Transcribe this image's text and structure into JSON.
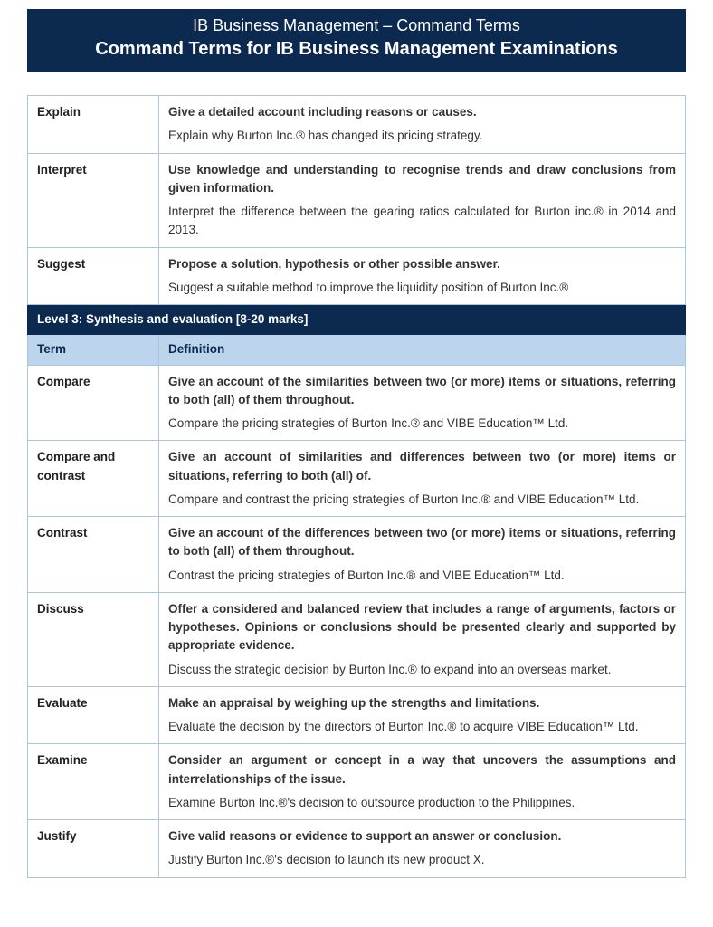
{
  "header": {
    "subtitle": "IB Business Management – Command Terms",
    "title": "Command Terms for IB Business Management Examinations"
  },
  "colors": {
    "header_bg": "#0c2a50",
    "header_text": "#ffffff",
    "table_border": "#a9c8df",
    "subheader_bg": "#bcd5ec",
    "text": "#333333"
  },
  "rows_top": [
    {
      "term": "Explain",
      "definition": "Give a detailed account including reasons or causes.",
      "example": "Explain why Burton Inc.® has changed its pricing strategy."
    },
    {
      "term": "Interpret",
      "definition": "Use knowledge and understanding to recognise trends and draw conclusions from given information.",
      "example": "Interpret the difference between the gearing ratios calculated for Burton inc.® in 2014 and 2013."
    },
    {
      "term": "Suggest",
      "definition": "Propose a solution, hypothesis or other possible answer.",
      "example": "Suggest a suitable method to improve the liquidity position of Burton Inc.®"
    }
  ],
  "level_header": "Level 3:  Synthesis and evaluation [8-20 marks]",
  "col_headers": {
    "term": "Term",
    "definition": "Definition"
  },
  "rows_l3": [
    {
      "term": "Compare",
      "definition": "Give an account of the similarities between two (or more) items or situations, referring to both (all) of them throughout.",
      "example": "Compare the pricing strategies of Burton Inc.®  and VIBE Education™ Ltd."
    },
    {
      "term": "Compare and contrast",
      "definition": "Give an account of similarities and differences between two (or more) items or situations, referring to both (all) of.",
      "example": "Compare and contrast the pricing strategies of Burton Inc.®  and VIBE Education™ Ltd."
    },
    {
      "term": "Contrast",
      "definition": "Give an account of the differences between two (or more) items or situations, referring to both (all) of them throughout.",
      "example": "Contrast the pricing strategies of Burton Inc.®  and VIBE Education™ Ltd."
    },
    {
      "term": "Discuss",
      "definition": "Offer a considered and balanced review that includes a range of arguments, factors or hypotheses. Opinions or conclusions should be presented clearly and supported by appropriate evidence.",
      "example": "Discuss the strategic decision by Burton Inc.® to expand into an overseas market."
    },
    {
      "term": "Evaluate",
      "definition": "Make an appraisal by weighing up the strengths and limitations.",
      "example": "Evaluate the decision by the directors of Burton Inc.® to acquire VIBE Education™ Ltd."
    },
    {
      "term": "Examine",
      "definition": "Consider an argument or concept in a way that uncovers the assumptions and interrelationships of the issue.",
      "example": "Examine Burton Inc.®'s decision to outsource production to the Philippines."
    },
    {
      "term": "Justify",
      "definition": "Give valid reasons or evidence to support an answer or conclusion.",
      "example": "Justify Burton Inc.®'s decision to launch its new product X."
    }
  ]
}
